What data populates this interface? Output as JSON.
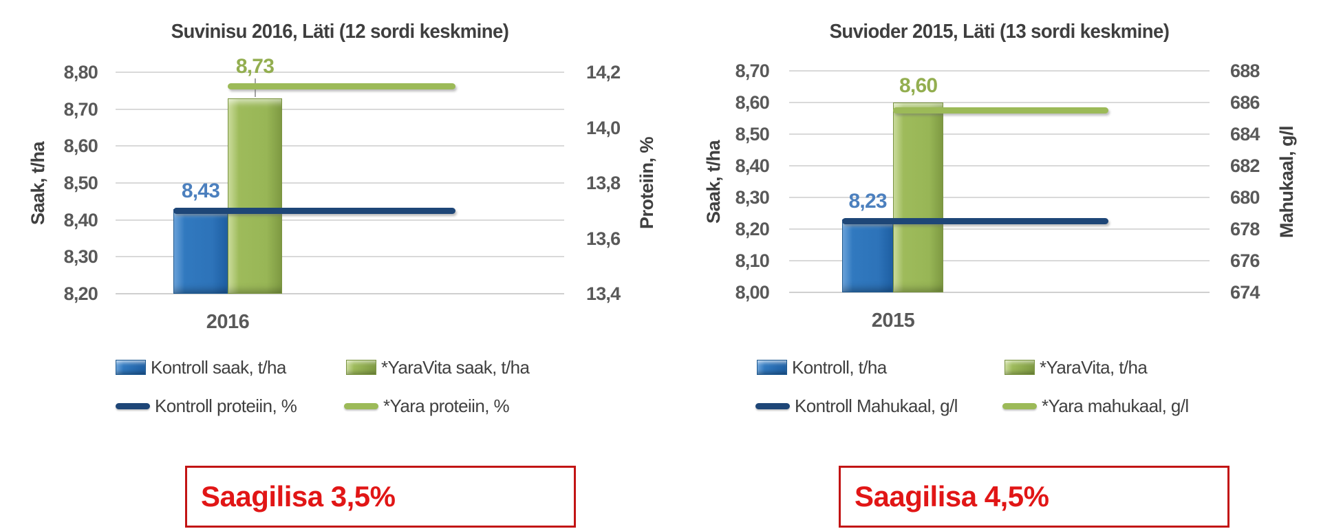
{
  "page": {
    "background": "#FFFFFF"
  },
  "colors": {
    "bar_blue": "#2F76BC",
    "bar_green": "#9CBA58",
    "line_navy": "#1E4677",
    "line_green": "#9CBA58",
    "data_label_blue": "#4C80BE",
    "data_label_green": "#93AE50",
    "title_gray": "#3F3F3F",
    "tick_gray": "#595959",
    "gridline_gray": "#D9D9D9",
    "callout_text_red": "#E11616",
    "callout_border_red": "#C21414"
  },
  "chart_data": [
    {
      "type": "bar+line",
      "title": "Suvinisu 2016, Läti (12 sordi keskmine)",
      "category": "2016",
      "left_axis": {
        "title": "Saak, t/ha",
        "min": 8.2,
        "max": 8.8,
        "ticks": [
          "8,80",
          "8,70",
          "8,60",
          "8,50",
          "8,40",
          "8,30",
          "8,20"
        ]
      },
      "right_axis": {
        "title": "Proteiin, %",
        "min": 13.4,
        "max": 14.2,
        "ticks": [
          "14,2",
          "14,0",
          "13,8",
          "13,6",
          "13,4"
        ]
      },
      "bars": [
        {
          "series": "Kontroll saak, t/ha",
          "value": 8.43,
          "label": "8,43",
          "color": "blue"
        },
        {
          "series": "*YaraVita saak, t/ha",
          "value": 8.73,
          "label": "8,73",
          "color": "green",
          "leader": true
        }
      ],
      "lines": [
        {
          "series": "Kontroll proteiin, %",
          "value": 13.7,
          "color": "navy"
        },
        {
          "series": "*Yara proteiin, %",
          "value": 14.15,
          "color": "green"
        }
      ],
      "legend": [
        {
          "swatch": "bar-blue",
          "label": "Kontroll saak, t/ha"
        },
        {
          "swatch": "bar-green",
          "label": "*YaraVita saak, t/ha"
        },
        {
          "swatch": "line-navy",
          "label": "Kontroll proteiin, %"
        },
        {
          "swatch": "line-green",
          "label": "*Yara proteiin, %"
        }
      ],
      "callout": "Saagilisa 3,5%"
    },
    {
      "type": "bar+line",
      "title": "Suvioder 2015, Läti (13 sordi keskmine)",
      "category": "2015",
      "left_axis": {
        "title": "Saak, t/ha",
        "min": 8.0,
        "max": 8.7,
        "ticks": [
          "8,70",
          "8,60",
          "8,50",
          "8,40",
          "8,30",
          "8,20",
          "8,10",
          "8,00"
        ]
      },
      "right_axis": {
        "title": "Mahukaal, g/l",
        "min": 674,
        "max": 688,
        "ticks": [
          "688",
          "686",
          "684",
          "682",
          "680",
          "678",
          "676",
          "674"
        ]
      },
      "bars": [
        {
          "series": "Kontroll, t/ha",
          "value": 8.23,
          "label": "8,23",
          "color": "blue"
        },
        {
          "series": "*YaraVita, t/ha",
          "value": 8.6,
          "label": "8,60",
          "color": "green"
        }
      ],
      "lines": [
        {
          "series": "Kontroll Mahukaal, g/l",
          "value": 678.5,
          "color": "navy"
        },
        {
          "series": "*Yara mahukaal, g/l",
          "value": 685.5,
          "color": "green"
        }
      ],
      "legend": [
        {
          "swatch": "bar-blue",
          "label": "Kontroll, t/ha"
        },
        {
          "swatch": "bar-green",
          "label": "*YaraVita, t/ha"
        },
        {
          "swatch": "line-navy",
          "label": "Kontroll Mahukaal, g/l"
        },
        {
          "swatch": "line-green",
          "label": "*Yara mahukaal, g/l"
        }
      ],
      "callout": "Saagilisa 4,5%"
    }
  ]
}
